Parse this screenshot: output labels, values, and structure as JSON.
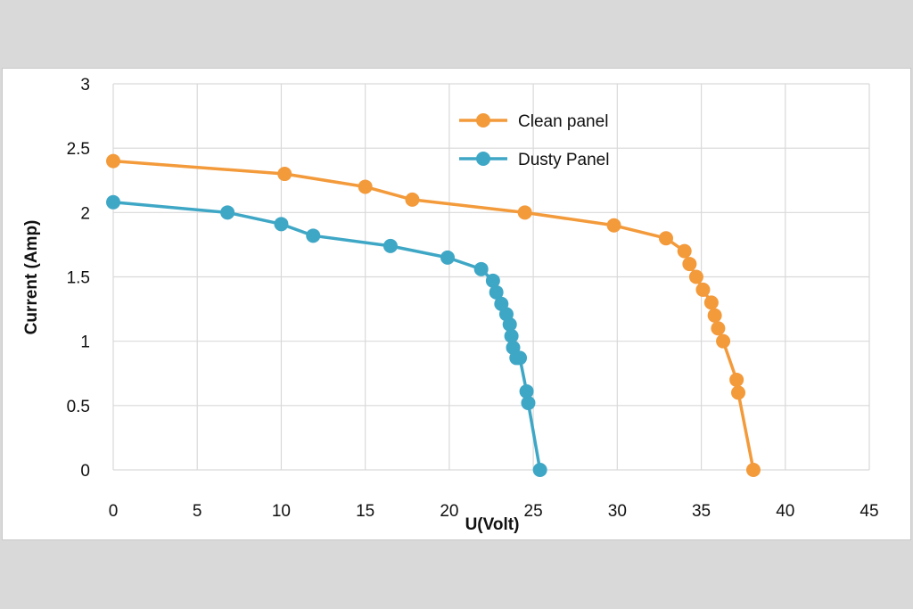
{
  "chart_data": {
    "type": "scatter",
    "xlabel": "U(Volt)",
    "ylabel": "Current (Amp)",
    "xlim": [
      0,
      45
    ],
    "ylim": [
      0,
      3
    ],
    "xticks": [
      "0",
      "5",
      "10",
      "15",
      "20",
      "25",
      "30",
      "35",
      "40",
      "45"
    ],
    "yticks": [
      "0",
      "0.5",
      "1",
      "1.5",
      "2",
      "2.5",
      "3"
    ],
    "grid": true,
    "legend_position": "top-center",
    "series": [
      {
        "name": "Clean panel",
        "color": "#f39a3b",
        "x": [
          0,
          10.2,
          15,
          17.8,
          24.5,
          29.8,
          32.9,
          34,
          34.3,
          34.7,
          35.1,
          35.6,
          35.8,
          36,
          36.3,
          37.1,
          37.2,
          38.1
        ],
        "y": [
          2.4,
          2.3,
          2.2,
          2.1,
          2.0,
          1.9,
          1.8,
          1.7,
          1.6,
          1.5,
          1.4,
          1.3,
          1.2,
          1.1,
          1.0,
          0.7,
          0.6,
          0.0
        ]
      },
      {
        "name": "Dusty Panel",
        "color": "#3fa7c6",
        "x": [
          0,
          6.8,
          10,
          11.9,
          16.5,
          19.9,
          21.9,
          22.6,
          22.8,
          23.1,
          23.4,
          23.6,
          23.7,
          23.8,
          24,
          24.2,
          24.6,
          24.7,
          25.4
        ],
        "y": [
          2.08,
          2.0,
          1.91,
          1.82,
          1.74,
          1.65,
          1.56,
          1.47,
          1.38,
          1.29,
          1.21,
          1.13,
          1.04,
          0.95,
          0.87,
          0.87,
          0.61,
          0.52,
          0.0
        ]
      }
    ]
  }
}
